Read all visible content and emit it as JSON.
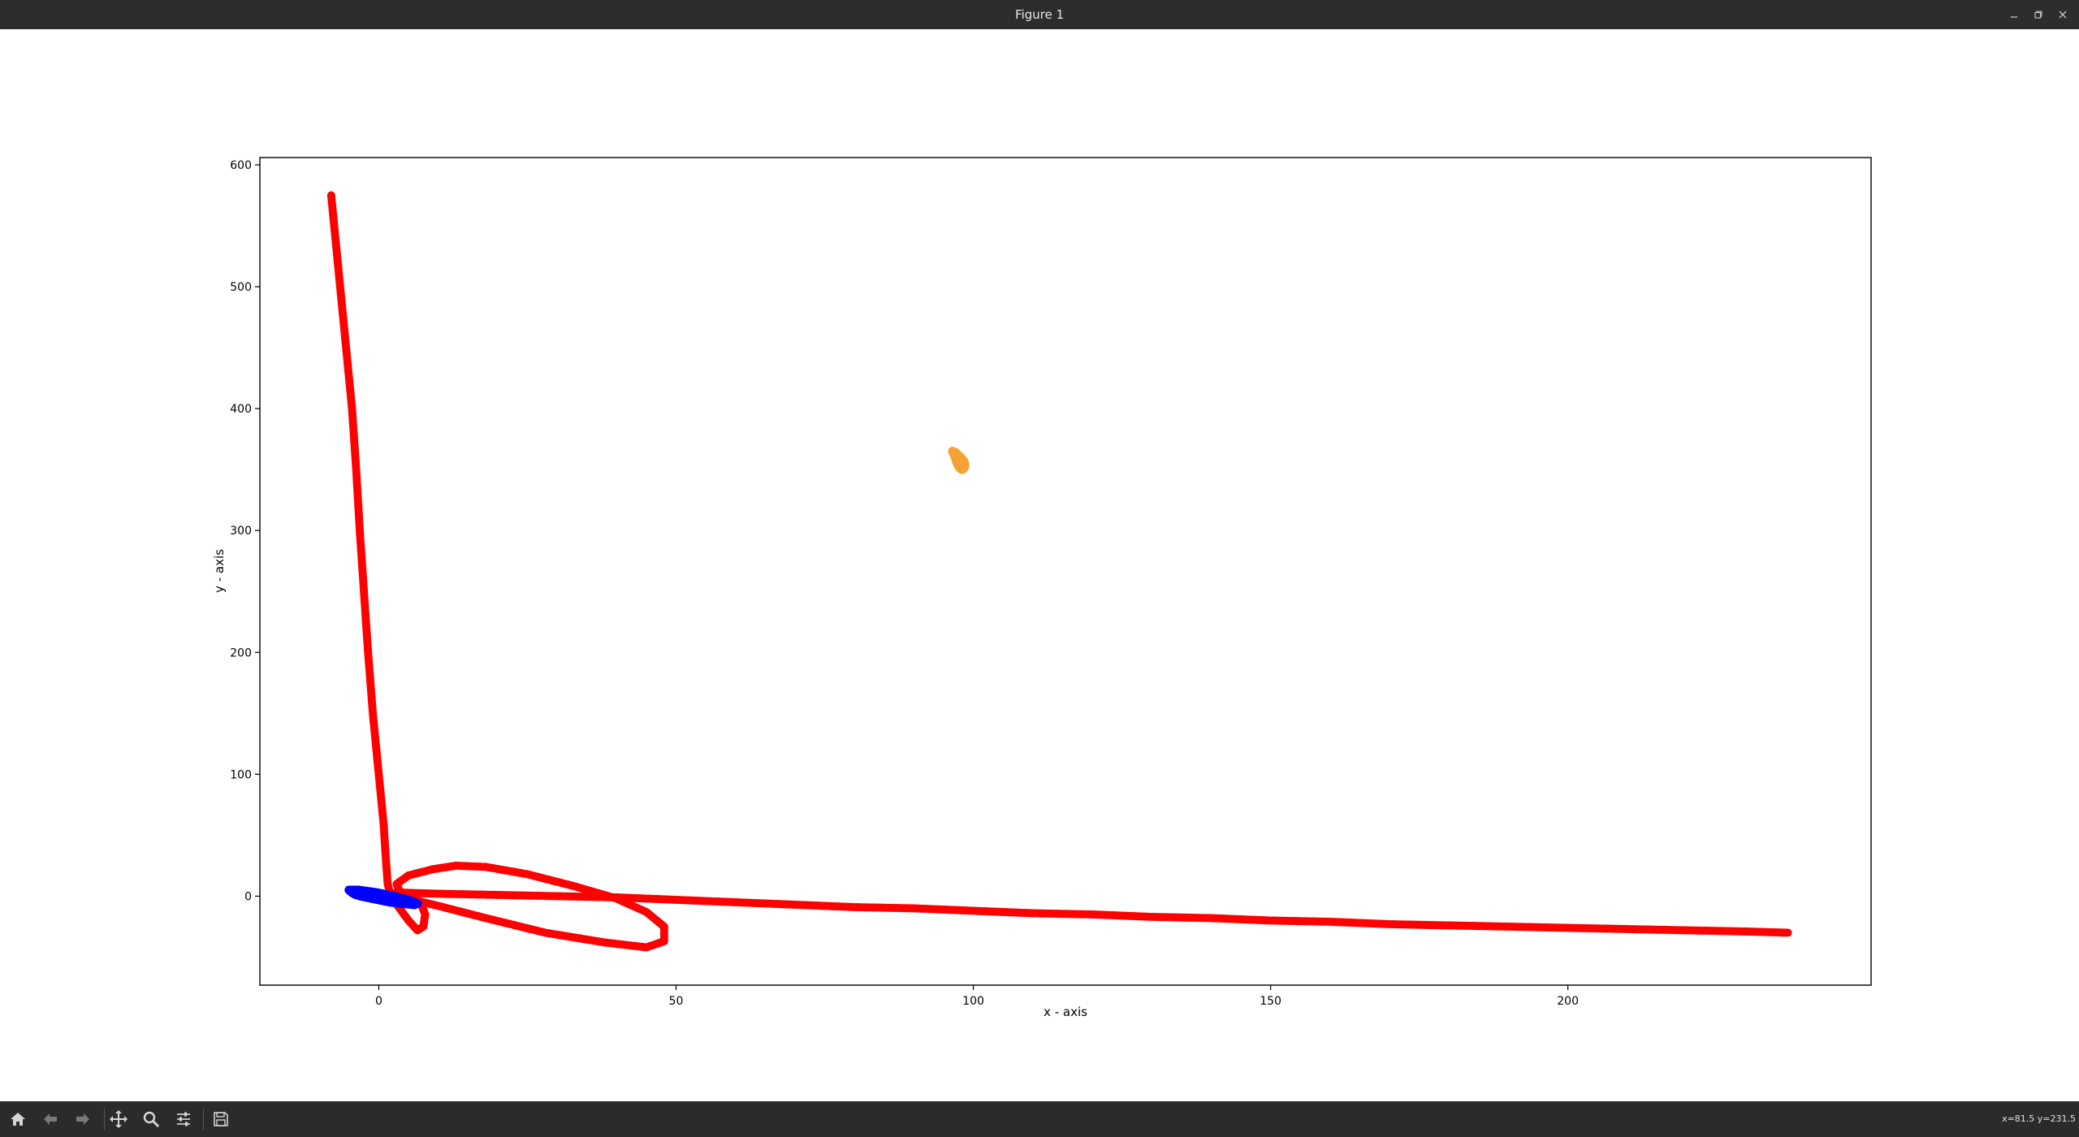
{
  "window": {
    "title": "Figure 1",
    "controls": [
      "minimize-icon",
      "restore-icon",
      "close-icon"
    ]
  },
  "toolbar": {
    "buttons": [
      {
        "name": "home-icon",
        "tooltip": "Reset original view"
      },
      {
        "name": "back-icon",
        "tooltip": "Back to previous view"
      },
      {
        "name": "forward-icon",
        "tooltip": "Forward to next view"
      },
      {
        "name": "pan-icon",
        "tooltip": "Pan axes"
      },
      {
        "name": "zoom-icon",
        "tooltip": "Zoom to rectangle"
      },
      {
        "name": "configure-icon",
        "tooltip": "Configure subplots"
      },
      {
        "name": "save-icon",
        "tooltip": "Save the figure"
      }
    ],
    "coords": "x=81.5 y=231.5"
  },
  "chart_data": {
    "type": "scatter",
    "title": "",
    "xlabel": "x - axis",
    "ylabel": "y - axis",
    "xlim": [
      -20,
      251
    ],
    "ylim": [
      -73,
      606
    ],
    "xticks": [
      0,
      50,
      100,
      150,
      200
    ],
    "yticks": [
      0,
      100,
      200,
      300,
      400,
      500,
      600
    ],
    "grid": false,
    "legend": null,
    "series": [
      {
        "color": "#ff0000",
        "marker": "o",
        "points": [
          [
            -8,
            575
          ],
          [
            -7.5,
            550
          ],
          [
            -6.5,
            500
          ],
          [
            -5.5,
            450
          ],
          [
            -4.5,
            400
          ],
          [
            -3.8,
            350
          ],
          [
            -3.2,
            300
          ],
          [
            -2.5,
            250
          ],
          [
            -1.8,
            200
          ],
          [
            -1,
            150
          ],
          [
            0,
            100
          ],
          [
            0.8,
            60
          ],
          [
            1.2,
            30
          ],
          [
            1.5,
            10
          ],
          [
            2,
            0
          ],
          [
            3.5,
            -10
          ],
          [
            5,
            -20
          ],
          [
            6.5,
            -28
          ],
          [
            7.5,
            -25
          ],
          [
            7.8,
            -15
          ],
          [
            7,
            -5
          ],
          [
            5.5,
            0
          ],
          [
            3.5,
            4
          ],
          [
            3,
            10
          ],
          [
            5,
            17
          ],
          [
            9,
            22
          ],
          [
            13,
            25
          ],
          [
            18,
            24
          ],
          [
            25,
            18
          ],
          [
            33,
            8
          ],
          [
            40,
            -2
          ],
          [
            45,
            -13
          ],
          [
            48,
            -25
          ],
          [
            48,
            -37
          ],
          [
            45,
            -42
          ],
          [
            38,
            -38
          ],
          [
            28,
            -30
          ],
          [
            18,
            -18
          ],
          [
            10,
            -8
          ],
          [
            5,
            -2
          ],
          [
            2,
            2
          ],
          [
            3,
            3
          ],
          [
            10,
            2
          ],
          [
            20,
            1
          ],
          [
            30,
            0
          ],
          [
            40,
            -1
          ],
          [
            50,
            -3
          ],
          [
            60,
            -5
          ],
          [
            70,
            -7
          ],
          [
            80,
            -9
          ],
          [
            90,
            -10
          ],
          [
            100,
            -12
          ],
          [
            110,
            -14
          ],
          [
            120,
            -15
          ],
          [
            130,
            -17
          ],
          [
            140,
            -18
          ],
          [
            150,
            -20
          ],
          [
            160,
            -21
          ],
          [
            170,
            -23
          ],
          [
            180,
            -24
          ],
          [
            190,
            -25
          ],
          [
            200,
            -26
          ],
          [
            210,
            -27
          ],
          [
            220,
            -28
          ],
          [
            230,
            -29
          ],
          [
            237,
            -30
          ]
        ]
      },
      {
        "color": "#0000ff",
        "marker": "o",
        "points": [
          [
            -5,
            5
          ],
          [
            -4.5,
            3
          ],
          [
            -4,
            1.5
          ],
          [
            -3,
            0
          ],
          [
            -2,
            -1
          ],
          [
            -1,
            -2
          ],
          [
            0,
            -3
          ],
          [
            1,
            -4
          ],
          [
            2,
            -5
          ],
          [
            3,
            -5.5
          ],
          [
            4,
            -6
          ],
          [
            5,
            -6.5
          ],
          [
            6,
            -7
          ],
          [
            6.5,
            -6
          ],
          [
            5.5,
            -4
          ],
          [
            4,
            -2
          ],
          [
            2.5,
            0
          ],
          [
            1,
            1.5
          ],
          [
            -0.5,
            3
          ],
          [
            -2,
            4
          ],
          [
            -3.5,
            5
          ]
        ]
      },
      {
        "color": "#f5a234",
        "marker": "o",
        "points": [
          [
            96.5,
            365
          ],
          [
            96.8,
            362
          ],
          [
            97,
            359
          ],
          [
            97.2,
            356
          ],
          [
            97.5,
            353
          ],
          [
            97.8,
            351
          ],
          [
            98.1,
            350
          ],
          [
            98.4,
            351
          ],
          [
            98.6,
            353
          ],
          [
            98.5,
            356
          ],
          [
            98.2,
            358
          ],
          [
            97.9,
            360
          ],
          [
            97.4,
            362
          ],
          [
            97,
            364
          ]
        ]
      }
    ]
  }
}
